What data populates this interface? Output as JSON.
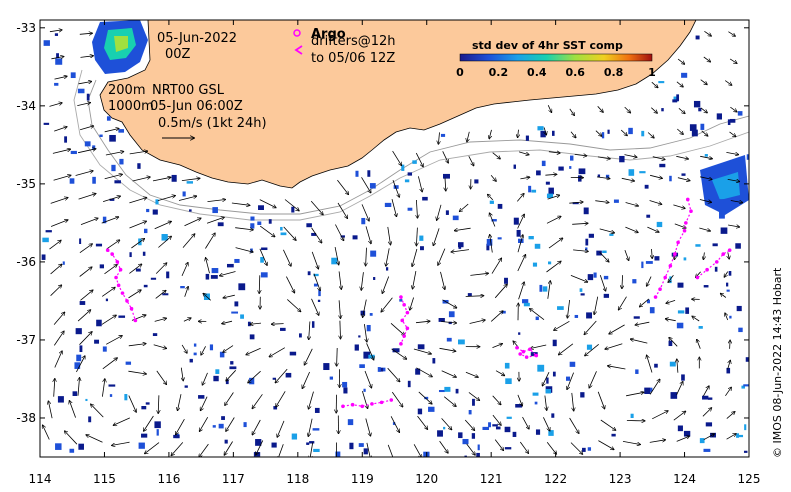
{
  "map": {
    "lon_ticks": [
      "114",
      "115",
      "116",
      "117",
      "118",
      "119",
      "120",
      "121",
      "122",
      "123",
      "124",
      "125"
    ],
    "lat_ticks": [
      "-33",
      "-34",
      "-35",
      "-36",
      "-37",
      "-38"
    ],
    "lon_range": [
      114,
      125
    ],
    "lat_range": [
      -38.5,
      -32.9
    ]
  },
  "annotations": {
    "date": "05-Jun-2022",
    "time": "00Z",
    "isobath_a": "200m",
    "isobath_b": "1000m",
    "model": "NRT00 GSL",
    "model_time": "05-Jun 06:00Z",
    "scale_label": "0.5m/s (1kt 24h)",
    "argo_label": "Argo",
    "drifters_label": "drifters@12h",
    "drifters_to": "to 05/06 12Z",
    "credit": "© IMOS 08-Jun-2022 14:43 Hobart"
  },
  "colorbar": {
    "title": "std dev of 4hr SST comp",
    "ticks": [
      "0",
      "0.2",
      "0.4",
      "0.6",
      "0.8",
      "1"
    ],
    "range": [
      0,
      1
    ]
  },
  "colors": {
    "land": "#fcc99b",
    "sst_low": "#0a1a8c",
    "drifter": "#ff00ff",
    "argo": "#ff00ff",
    "isobath": "#999999"
  },
  "drifter_tracks": [
    {
      "points": [
        [
          115.05,
          -35.85
        ],
        [
          115.12,
          -35.9
        ],
        [
          115.2,
          -36.0
        ],
        [
          115.25,
          -36.1
        ],
        [
          115.18,
          -36.2
        ],
        [
          115.22,
          -36.3
        ],
        [
          115.28,
          -36.4
        ],
        [
          115.35,
          -36.5
        ],
        [
          115.42,
          -36.6
        ],
        [
          115.48,
          -36.75
        ]
      ]
    },
    {
      "points": [
        [
          119.6,
          -36.45
        ],
        [
          119.65,
          -36.55
        ],
        [
          119.7,
          -36.65
        ],
        [
          119.62,
          -36.75
        ],
        [
          119.7,
          -36.85
        ],
        [
          119.65,
          -36.95
        ],
        [
          119.6,
          -37.05
        ]
      ]
    },
    {
      "points": [
        [
          118.7,
          -37.85
        ],
        [
          118.85,
          -37.83
        ],
        [
          119.0,
          -37.85
        ],
        [
          119.15,
          -37.82
        ],
        [
          119.3,
          -37.8
        ],
        [
          119.45,
          -37.77
        ]
      ]
    },
    {
      "points": [
        [
          121.4,
          -37.1
        ],
        [
          121.5,
          -37.15
        ],
        [
          121.6,
          -37.12
        ],
        [
          121.7,
          -37.2
        ],
        [
          121.55,
          -37.22
        ],
        [
          121.45,
          -37.18
        ]
      ]
    },
    {
      "points": [
        [
          124.05,
          -35.2
        ],
        [
          124.1,
          -35.35
        ],
        [
          124.02,
          -35.5
        ],
        [
          124.0,
          -35.6
        ],
        [
          123.9,
          -35.75
        ],
        [
          123.85,
          -35.9
        ],
        [
          123.78,
          -36.05
        ],
        [
          123.7,
          -36.2
        ],
        [
          123.62,
          -36.35
        ],
        [
          123.55,
          -36.45
        ]
      ]
    },
    {
      "points": [
        [
          124.2,
          -36.2
        ],
        [
          124.35,
          -36.1
        ],
        [
          124.5,
          -36.0
        ],
        [
          124.6,
          -35.9
        ],
        [
          124.7,
          -35.85
        ]
      ]
    }
  ]
}
